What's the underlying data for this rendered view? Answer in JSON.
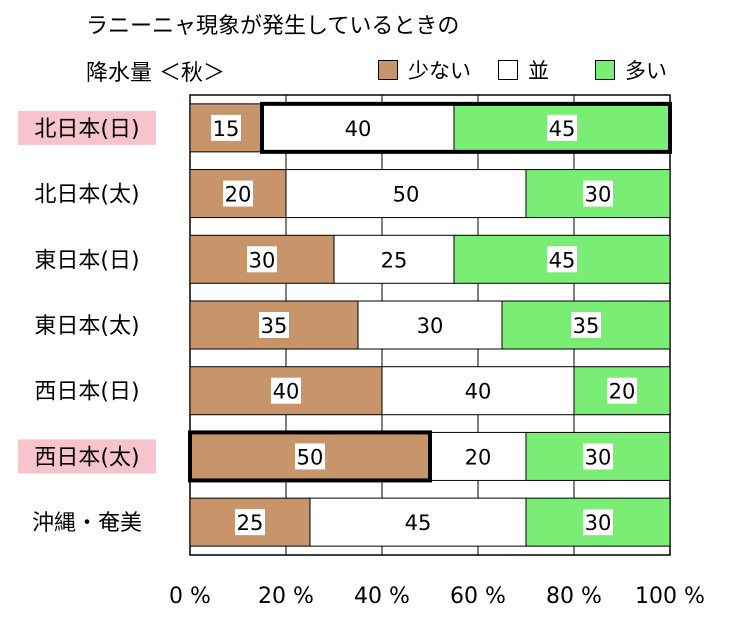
{
  "title": {
    "line1": "ラニーニャ現象が発生しているときの",
    "line2": "降水量 ＜秋＞"
  },
  "legend": [
    {
      "label": "少ない",
      "color": "#c8956a"
    },
    {
      "label": "並",
      "color": "#ffffff"
    },
    {
      "label": "多い",
      "color": "#7aee74"
    }
  ],
  "chart_data": {
    "type": "bar",
    "orientation": "horizontal",
    "stacked": true,
    "categories": [
      "北日本(日)",
      "北日本(太)",
      "東日本(日)",
      "東日本(太)",
      "西日本(日)",
      "西日本(太)",
      "沖縄・奄美"
    ],
    "series": [
      {
        "name": "少ない",
        "values": [
          15,
          20,
          30,
          35,
          40,
          50,
          25
        ],
        "color": "#c8956a"
      },
      {
        "name": "並",
        "values": [
          40,
          50,
          25,
          30,
          40,
          20,
          45
        ],
        "color": "#ffffff"
      },
      {
        "name": "多い",
        "values": [
          45,
          30,
          45,
          35,
          20,
          30,
          30
        ],
        "color": "#7aee74"
      }
    ],
    "highlighted_categories": [
      "北日本(日)",
      "西日本(太)"
    ],
    "highlight_color": "#f7c3cc",
    "emphasized_segments": [
      {
        "category": "北日本(日)",
        "series": [
          "並",
          "多い"
        ]
      },
      {
        "category": "西日本(太)",
        "series": [
          "少ない"
        ]
      }
    ],
    "xlim": [
      0,
      100
    ],
    "xticks": [
      "0 %",
      "20 %",
      "40 %",
      "60 %",
      "80 %",
      "100 %"
    ],
    "grid": true
  }
}
